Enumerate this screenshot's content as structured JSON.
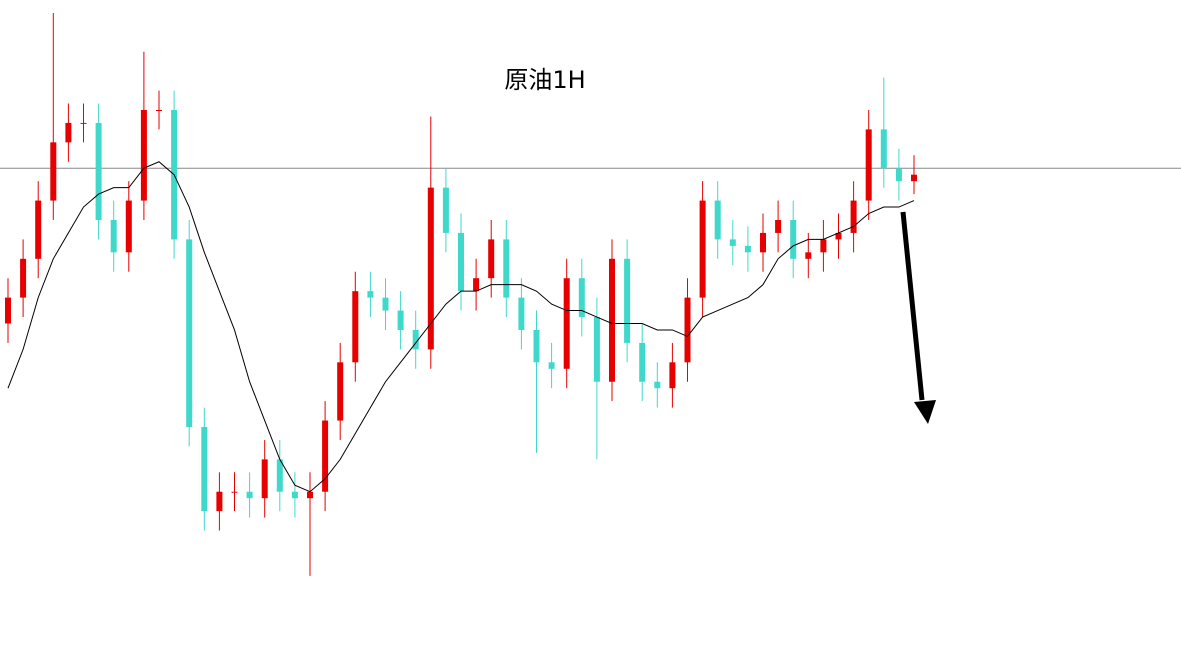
{
  "chart_data": {
    "type": "candlestick",
    "title": "原油1H",
    "ylim": [
      0,
      100
    ],
    "up_color": "#e60000",
    "down_color": "#3fd9cc",
    "level": 74,
    "level_color": "#888888",
    "open": [
      50,
      54,
      60,
      69,
      78,
      81,
      81,
      66,
      61,
      69,
      83,
      83,
      63,
      34,
      21,
      24,
      24,
      23,
      29,
      24,
      23,
      24,
      35,
      44,
      55,
      54,
      52,
      49,
      46,
      71,
      64,
      55,
      57,
      63,
      54,
      49,
      44,
      43,
      57,
      51,
      41,
      60,
      47,
      41,
      40,
      44,
      54,
      69,
      63,
      62,
      61,
      64,
      66,
      60,
      61,
      63,
      64,
      69,
      80,
      74,
      72
    ],
    "high": [
      57,
      63,
      72,
      98,
      84,
      84,
      84,
      69,
      72,
      92,
      86,
      86,
      66,
      37,
      27,
      27,
      27,
      32,
      32,
      27,
      27,
      38,
      47,
      58,
      58,
      57,
      55,
      52,
      82,
      74,
      67,
      60,
      66,
      66,
      57,
      52,
      47,
      60,
      60,
      54,
      63,
      63,
      50,
      44,
      47,
      57,
      72,
      72,
      66,
      65,
      67,
      69,
      69,
      64,
      66,
      67,
      72,
      83,
      88,
      77,
      76
    ],
    "low": [
      47,
      51,
      57,
      66,
      75,
      78,
      63,
      58,
      58,
      66,
      80,
      60,
      31,
      18,
      18,
      21,
      20,
      20,
      21,
      20,
      11,
      21,
      32,
      41,
      51,
      49,
      46,
      43,
      43,
      61,
      52,
      52,
      54,
      51,
      46,
      30,
      40,
      40,
      48,
      29,
      38,
      44,
      38,
      37,
      37,
      41,
      51,
      60,
      59,
      58,
      58,
      61,
      57,
      57,
      58,
      60,
      61,
      66,
      71,
      69,
      70
    ],
    "close": [
      54,
      60,
      69,
      78,
      81,
      81,
      66,
      61,
      69,
      83,
      83,
      63,
      34,
      21,
      24,
      24,
      23,
      29,
      24,
      23,
      24,
      35,
      44,
      55,
      54,
      52,
      49,
      46,
      71,
      64,
      55,
      57,
      63,
      54,
      49,
      44,
      43,
      57,
      51,
      41,
      60,
      47,
      41,
      40,
      44,
      54,
      69,
      63,
      62,
      61,
      64,
      66,
      60,
      61,
      63,
      64,
      69,
      80,
      74,
      72,
      73
    ],
    "series": [
      {
        "color": "#000000",
        "values": [
          40,
          46,
          54,
          60,
          64,
          68,
          70,
          71,
          71,
          74,
          75,
          73,
          68,
          61,
          55,
          49,
          41,
          35,
          29,
          25,
          24,
          26,
          29,
          33,
          37,
          41,
          44,
          47,
          50,
          53,
          55,
          55,
          56,
          56,
          56,
          55,
          53,
          52,
          52,
          51,
          50,
          50,
          50,
          49,
          49,
          48,
          51,
          52,
          53,
          54,
          56,
          60,
          62,
          63,
          63,
          64,
          65,
          67,
          68,
          68,
          69
        ]
      }
    ]
  }
}
